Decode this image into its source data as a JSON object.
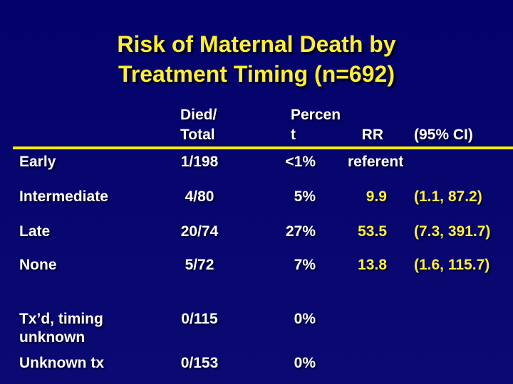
{
  "slide": {
    "title_lines": [
      "Risk of Maternal Death by",
      "Treatment Timing (n=692)"
    ],
    "colors": {
      "background": "#02026a",
      "title": "#ffee33",
      "body_text": "#ffffff",
      "highlight_values": "#ffee3d",
      "divider_line": "#f7ef00"
    }
  },
  "table": {
    "headers": {
      "treatment": "",
      "died_total": "Died/\nTotal",
      "percent": "Percen\nt",
      "rr": "RR",
      "ci": "(95% CI)"
    },
    "rows": [
      {
        "label": "Early",
        "died_total": "1/198",
        "percent": "<1%",
        "rr": "referent",
        "ci": ""
      },
      {
        "label": "Intermediate",
        "died_total": "4/80",
        "percent": "5%",
        "rr": "9.9",
        "ci": "(1.1, 87.2)"
      },
      {
        "label": "Late",
        "died_total": "20/74",
        "percent": "27%",
        "rr": "53.5",
        "ci": "(7.3, 391.7)"
      },
      {
        "label": "None",
        "died_total": "5/72",
        "percent": "7%",
        "rr": "13.8",
        "ci": "(1.6, 115.7)"
      },
      {
        "label": "Tx’d, timing\nunknown",
        "died_total": "0/115",
        "percent": "0%",
        "rr": "",
        "ci": ""
      },
      {
        "label": "Unknown tx",
        "died_total": "0/153",
        "percent": "0%",
        "rr": "",
        "ci": ""
      }
    ]
  }
}
